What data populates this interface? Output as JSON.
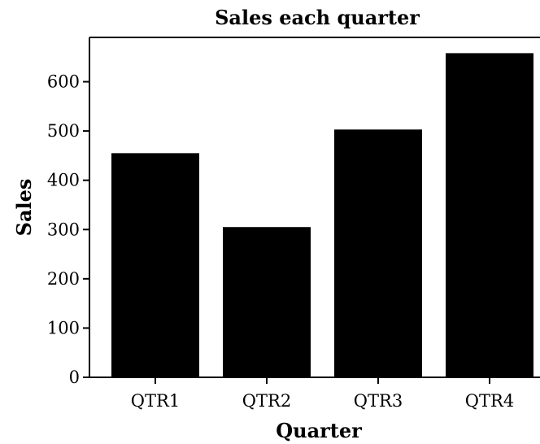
{
  "chart_data": {
    "type": "bar",
    "title": "Sales each quarter",
    "xlabel": "Quarter",
    "ylabel": "Sales",
    "categories": [
      "QTR1",
      "QTR2",
      "QTR3",
      "QTR4"
    ],
    "values": [
      455,
      305,
      503,
      658
    ],
    "ylim": [
      0,
      690
    ],
    "yticks": [
      0,
      100,
      200,
      300,
      400,
      500,
      600
    ],
    "ytick_labels": [
      "0",
      "100",
      "200",
      "300",
      "400",
      "500",
      "600"
    ],
    "grid": false,
    "legend": "none",
    "bar_color": "#000000"
  }
}
